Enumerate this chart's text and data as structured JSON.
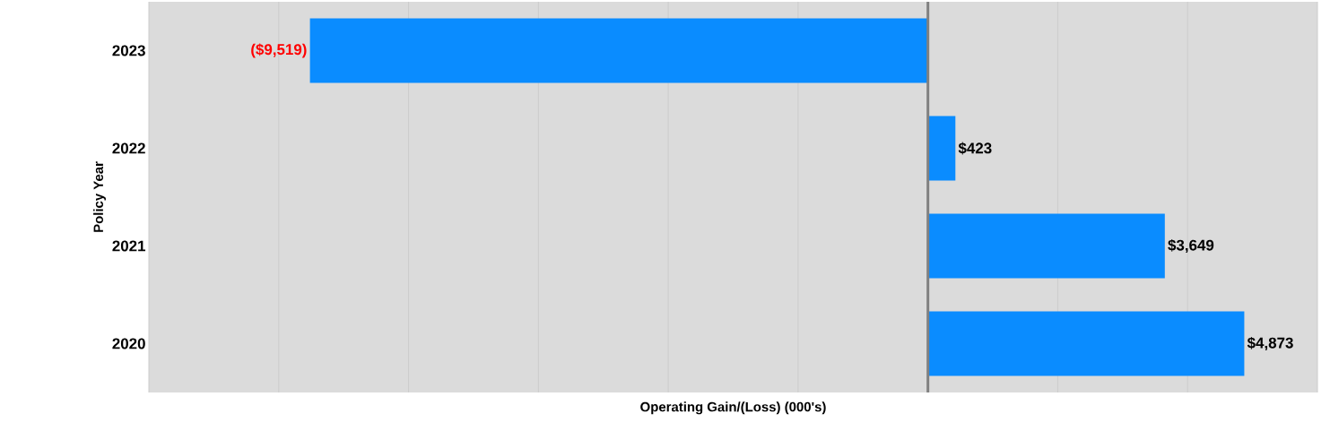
{
  "chart_data": {
    "type": "bar",
    "orientation": "horizontal",
    "xlabel": "Operating Gain/(Loss) (000's)",
    "ylabel": "Policy Year",
    "categories": [
      "2023",
      "2022",
      "2021",
      "2020"
    ],
    "values": [
      -9519,
      423,
      3649,
      4873
    ],
    "value_labels": [
      "($9,519)",
      "$423",
      "$3,649",
      "$4,873"
    ],
    "color": "#0a8cff",
    "xlim": [
      -12000,
      6000
    ],
    "xticks": [
      {
        "value": -12000,
        "label": null
      },
      {
        "value": -10000,
        "label": null
      },
      {
        "value": -8000,
        "label": null
      },
      {
        "value": -6000,
        "label": null
      },
      {
        "value": -4000,
        "label": null
      },
      {
        "value": -2000,
        "label": null
      },
      {
        "value": 0,
        "label": null
      },
      {
        "value": 2000,
        "label": null
      },
      {
        "value": 4000,
        "label": null
      },
      {
        "value": 6000,
        "label": null
      }
    ],
    "grid": "x",
    "tick_labels": "y",
    "ref_lines": [
      {
        "axis": "x",
        "value": 0,
        "color": "#808080"
      }
    ]
  }
}
